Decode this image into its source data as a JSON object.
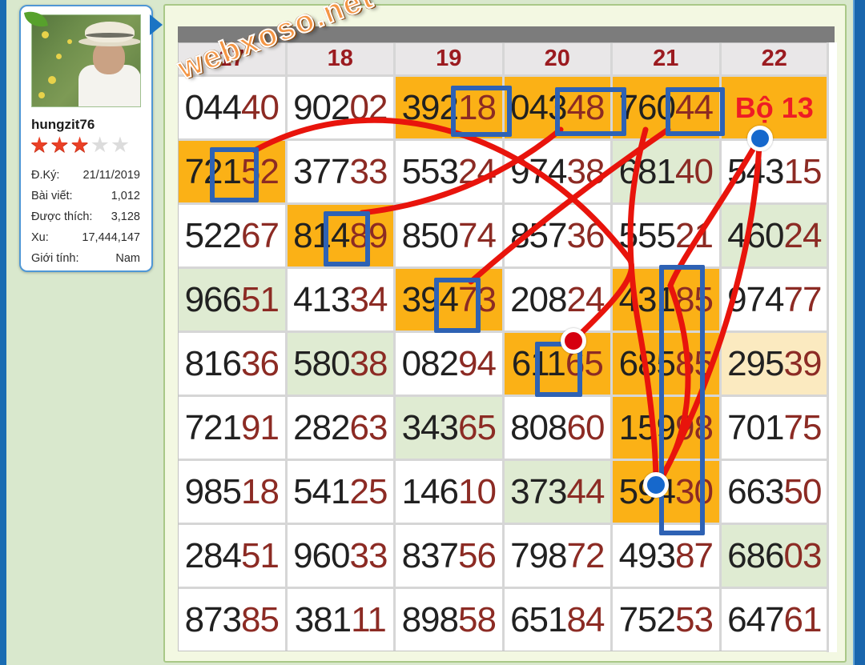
{
  "watermark": "webxoso.net",
  "profile": {
    "username": "hungzit76",
    "stars_filled": 3,
    "stars_total": 5,
    "stats": [
      {
        "label": "Đ.Ký:",
        "value": "21/11/2019"
      },
      {
        "label": "Bài viết:",
        "value": "1,012"
      },
      {
        "label": "Được thích:",
        "value": "3,128"
      },
      {
        "label": "Xu:",
        "value": "17,444,147"
      },
      {
        "label": "Giới tính:",
        "value": "Nam"
      }
    ]
  },
  "table": {
    "columns": [
      "17",
      "18",
      "19",
      "20",
      "21",
      "22"
    ],
    "rows": [
      [
        {
          "v": "04440",
          "bg": "w"
        },
        {
          "v": "90202",
          "bg": "w"
        },
        {
          "v": "39218",
          "bg": "o"
        },
        {
          "v": "04348",
          "bg": "o"
        },
        {
          "v": "76044",
          "bg": "o"
        },
        {
          "label": "Bộ 13",
          "bg": "o"
        }
      ],
      [
        {
          "v": "72152",
          "bg": "o"
        },
        {
          "v": "37733",
          "bg": "w"
        },
        {
          "v": "55324",
          "bg": "w"
        },
        {
          "v": "97438",
          "bg": "w"
        },
        {
          "v": "68140",
          "bg": "g"
        },
        {
          "v": "54315",
          "bg": "w"
        }
      ],
      [
        {
          "v": "52267",
          "bg": "w"
        },
        {
          "v": "81489",
          "bg": "o"
        },
        {
          "v": "85074",
          "bg": "w"
        },
        {
          "v": "85736",
          "bg": "w"
        },
        {
          "v": "55521",
          "bg": "w"
        },
        {
          "v": "46024",
          "bg": "g"
        }
      ],
      [
        {
          "v": "96651",
          "bg": "g"
        },
        {
          "v": "41334",
          "bg": "w"
        },
        {
          "v": "39473",
          "bg": "o"
        },
        {
          "v": "20824",
          "bg": "w"
        },
        {
          "v": "43185",
          "bg": "o"
        },
        {
          "v": "97477",
          "bg": "w"
        }
      ],
      [
        {
          "v": "81636",
          "bg": "w"
        },
        {
          "v": "58038",
          "bg": "g"
        },
        {
          "v": "08294",
          "bg": "w"
        },
        {
          "v": "61165",
          "bg": "o"
        },
        {
          "v": "68585",
          "bg": "o"
        },
        {
          "v": "29539",
          "bg": "c"
        }
      ],
      [
        {
          "v": "72191",
          "bg": "w"
        },
        {
          "v": "28263",
          "bg": "w"
        },
        {
          "v": "34365",
          "bg": "g"
        },
        {
          "v": "80860",
          "bg": "w"
        },
        {
          "v": "15998",
          "bg": "o"
        },
        {
          "v": "70175",
          "bg": "w"
        }
      ],
      [
        {
          "v": "98518",
          "bg": "w"
        },
        {
          "v": "54125",
          "bg": "w"
        },
        {
          "v": "14610",
          "bg": "w"
        },
        {
          "v": "37344",
          "bg": "g"
        },
        {
          "v": "59430",
          "bg": "o"
        },
        {
          "v": "66350",
          "bg": "w"
        }
      ],
      [
        {
          "v": "28451",
          "bg": "w"
        },
        {
          "v": "96033",
          "bg": "w"
        },
        {
          "v": "83756",
          "bg": "w"
        },
        {
          "v": "79872",
          "bg": "w"
        },
        {
          "v": "49387",
          "bg": "w"
        },
        {
          "v": "68603",
          "bg": "g"
        }
      ],
      [
        {
          "v": "87385",
          "bg": "w"
        },
        {
          "v": "38111",
          "bg": "w"
        },
        {
          "v": "89858",
          "bg": "w"
        },
        {
          "v": "65184",
          "bg": "w"
        },
        {
          "v": "75253",
          "bg": "w"
        },
        {
          "v": "64761",
          "bg": "w"
        }
      ]
    ]
  },
  "annotations": {
    "boxed_digits": [
      "39218→18",
      "04348→48",
      "76044→44",
      "72152→1",
      "81489→4",
      "39473→4",
      "61165→1",
      "column 21 digit-4 (43185/68585/15998/59430)"
    ],
    "dots": [
      {
        "color": "blue",
        "at": "below Bộ 13"
      },
      {
        "color": "red",
        "at": "top of 61165"
      },
      {
        "color": "blue",
        "at": "inside 59430"
      }
    ]
  },
  "colors": {
    "cell_orange": "#fbb116",
    "cell_green": "#dfebd2",
    "cell_cream": "#fbeac0",
    "digit_black": "#212121",
    "digit_maroon": "#8c2b24",
    "header_maroon": "#9b1b20",
    "bo13_red": "#ee1c25",
    "line_red": "#e8140c",
    "box_blue": "#2e62b4",
    "dot_blue": "#1668cc",
    "dot_red": "#d6000f"
  }
}
